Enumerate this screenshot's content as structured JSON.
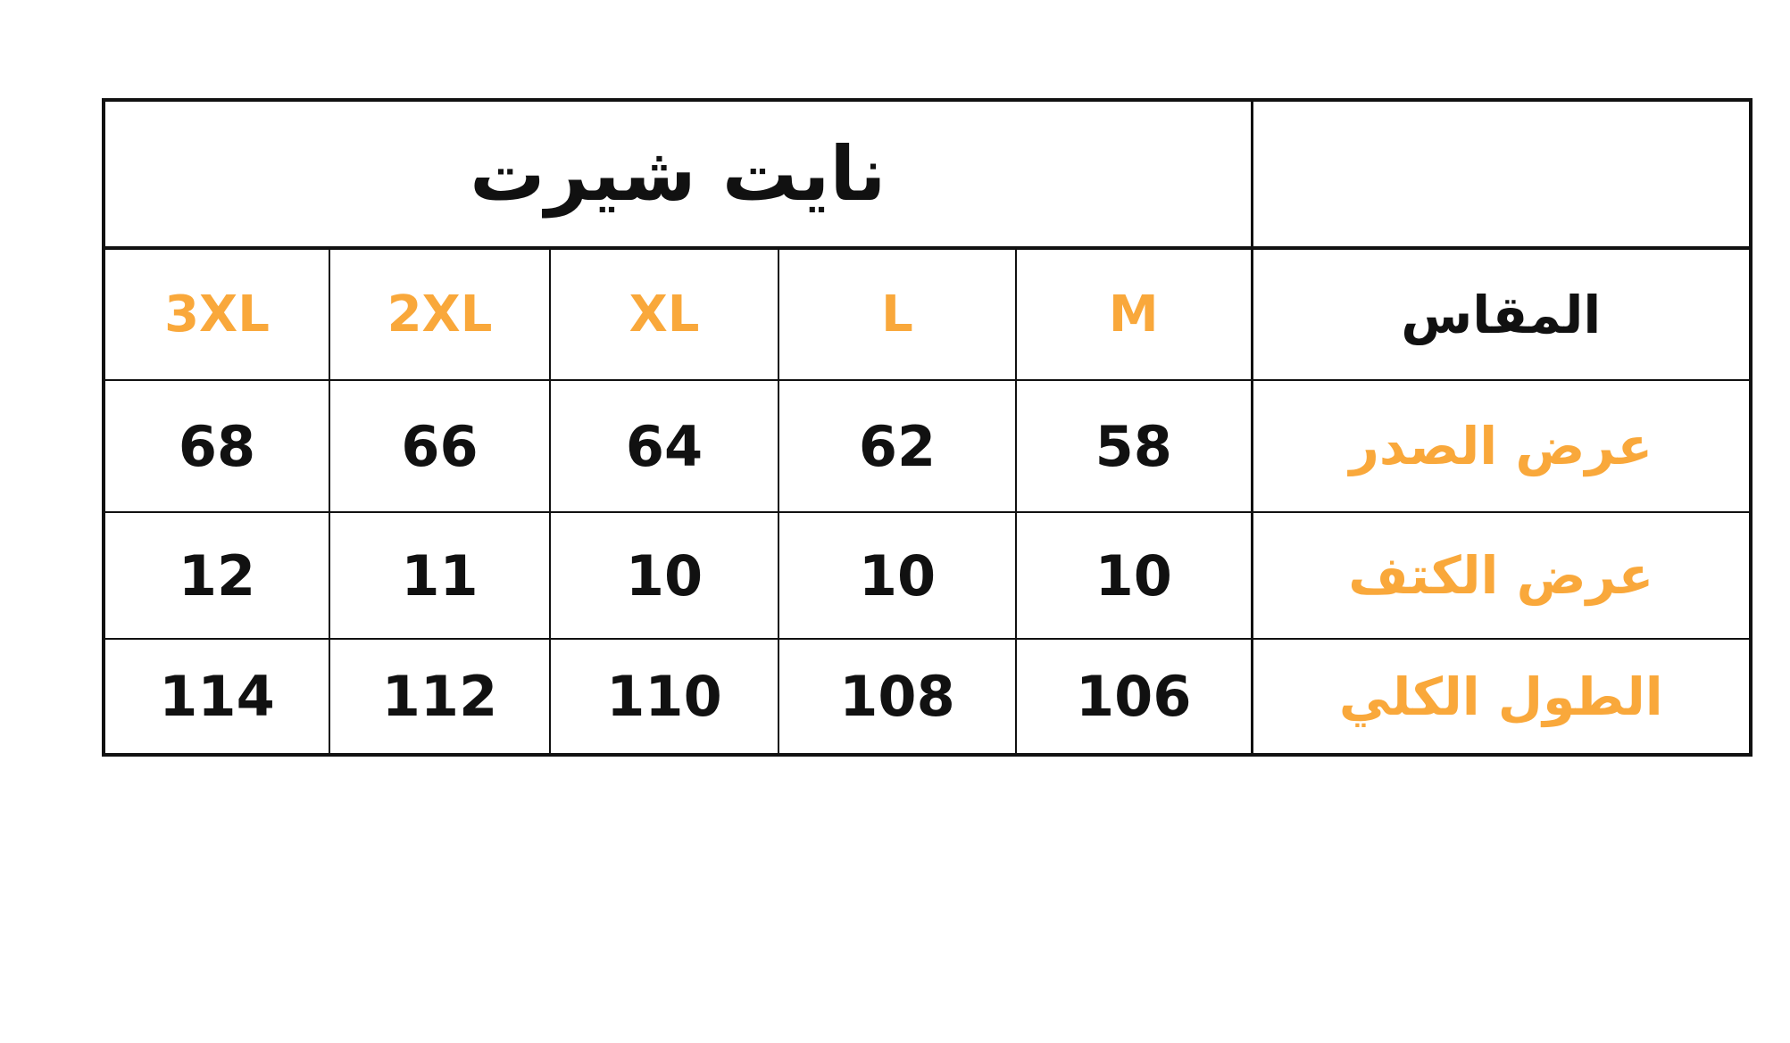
{
  "title": "نايت شيرت",
  "colors": {
    "accent": "#F9A83B",
    "text": "#111111"
  },
  "header": {
    "label": "المقاس",
    "sizes": [
      "M",
      "L",
      "XL",
      "2XL",
      "3XL"
    ]
  },
  "rows": [
    {
      "label": "عرض الصدر",
      "values": [
        "58",
        "62",
        "64",
        "66",
        "68"
      ]
    },
    {
      "label": "عرض الكتف",
      "values": [
        "10",
        "10",
        "10",
        "11",
        "12"
      ]
    },
    {
      "label": "الطول الكلي",
      "values": [
        "106",
        "108",
        "110",
        "112",
        "114"
      ]
    }
  ]
}
